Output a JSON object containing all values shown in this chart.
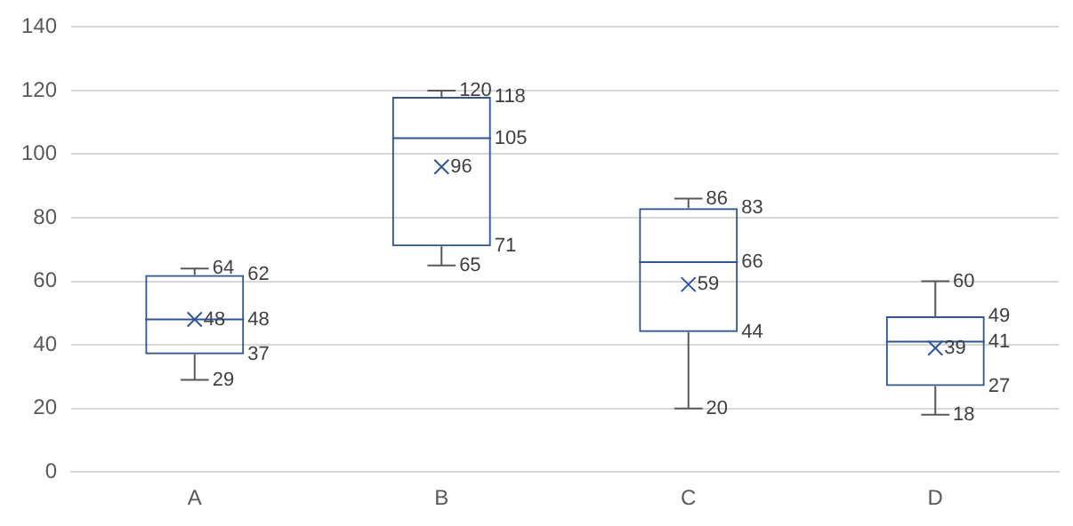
{
  "chart_data": {
    "type": "box",
    "categories": [
      "A",
      "B",
      "C",
      "D"
    ],
    "boxes": [
      {
        "low": 29,
        "q1": 37,
        "median": 48,
        "q3": 62,
        "high": 64
      },
      {
        "low": 65,
        "q1": 71,
        "median": 105,
        "q3": 118,
        "high": 120
      },
      {
        "low": 20,
        "q1": 44,
        "median": 66,
        "q3": 83,
        "high": 86
      },
      {
        "low": 18,
        "q1": 27,
        "median": 41,
        "q3": 49,
        "high": 60
      }
    ],
    "series": [
      {
        "type": "scatter",
        "x": [
          "A",
          "B",
          "C",
          "D"
        ],
        "values": [
          48,
          96,
          59,
          39
        ],
        "color": "#2f5597"
      }
    ],
    "marker": "cross",
    "annotations": [
      {
        "text": "64",
        "x": "A",
        "y": 64
      },
      {
        "text": "62",
        "x": "A",
        "y": 62
      },
      {
        "text": "48",
        "x": "A",
        "y": 48
      },
      {
        "text": "48",
        "x": "A",
        "y": 48
      },
      {
        "text": "37",
        "x": "A",
        "y": 37
      },
      {
        "text": "29",
        "x": "A",
        "y": 29
      },
      {
        "text": "120",
        "x": "B",
        "y": 120
      },
      {
        "text": "118",
        "x": "B",
        "y": 118
      },
      {
        "text": "105",
        "x": "B",
        "y": 105
      },
      {
        "text": "96",
        "x": "B",
        "y": 96
      },
      {
        "text": "71",
        "x": "B",
        "y": 71
      },
      {
        "text": "65",
        "x": "B",
        "y": 65
      },
      {
        "text": "86",
        "x": "C",
        "y": 86
      },
      {
        "text": "83",
        "x": "C",
        "y": 83
      },
      {
        "text": "66",
        "x": "C",
        "y": 66
      },
      {
        "text": "59",
        "x": "C",
        "y": 59
      },
      {
        "text": "44",
        "x": "C",
        "y": 44
      },
      {
        "text": "20",
        "x": "C",
        "y": 20
      },
      {
        "text": "60",
        "x": "D",
        "y": 60
      },
      {
        "text": "49",
        "x": "D",
        "y": 49
      },
      {
        "text": "41",
        "x": "D",
        "y": 41
      },
      {
        "text": "39",
        "x": "D",
        "y": 39
      },
      {
        "text": "27",
        "x": "D",
        "y": 27
      },
      {
        "text": "18",
        "x": "D",
        "y": 18
      }
    ],
    "color": "#2f5597",
    "ylim": [
      0,
      140
    ],
    "yticks": [
      0,
      20,
      40,
      60,
      80,
      100,
      120,
      140
    ],
    "grid": "y"
  }
}
